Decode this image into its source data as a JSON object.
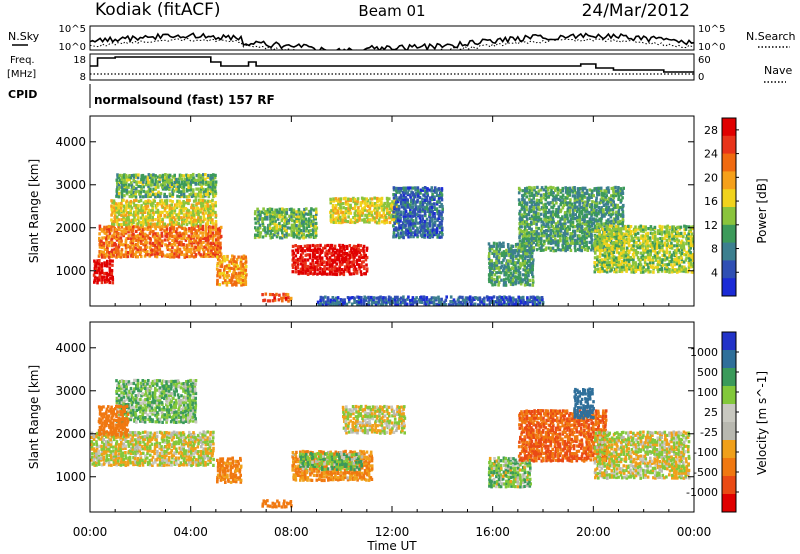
{
  "header": {
    "station": "Kodiak (fitACF)",
    "beam": "Beam 01",
    "date": "24/Mar/2012"
  },
  "strip": {
    "left_top": "N.Sky",
    "left_freq_1": "Freq.",
    "left_freq_2": "[MHz]",
    "left_cpid": "CPID",
    "right_top": "N.Search",
    "right_mid": "Nave",
    "noise_tick_hi": "10^5",
    "noise_tick_lo": "10^0",
    "freq_tick_hi": "18",
    "freq_tick_lo": "8",
    "nave_tick_hi": "60",
    "nave_tick_lo": "0",
    "cpid_text": "normalsound (fast) 157 RF"
  },
  "colors": {
    "power_scale": [
      "#1b2bd6",
      "#2f4fb4",
      "#3c7f8f",
      "#3c9a5a",
      "#8ac43c",
      "#f1d31c",
      "#f5a01a",
      "#f06a10",
      "#e8341a",
      "#e00000"
    ],
    "velocity_scale": [
      "#2233c8",
      "#2f6f9a",
      "#3a9a5a",
      "#82c83a",
      "#c8c8c0",
      "#b8b8b0",
      "#f0a01a",
      "#f07810",
      "#ea4a14",
      "#e00000"
    ],
    "ground_scatter": "#c6c6be"
  },
  "chart_data": [
    {
      "type": "heatmap",
      "title": "Power",
      "xlabel": "Time UT",
      "ylabel": "Slant Range [km]",
      "x_ticks": [
        "00:00",
        "04:00",
        "08:00",
        "12:00",
        "16:00",
        "20:00",
        "00:00"
      ],
      "y_ticks": [
        "1000",
        "2000",
        "3000",
        "4000"
      ],
      "ylim": [
        180,
        4600
      ],
      "colorbar": {
        "label": "Power [dB]",
        "ticks": [
          "4",
          "8",
          "12",
          "16",
          "20",
          "24",
          "28"
        ],
        "range": [
          0,
          30
        ]
      },
      "regions": [
        {
          "t": [
            0.1,
            0.9
          ],
          "r": [
            750,
            1300
          ],
          "v": 29
        },
        {
          "t": [
            0.3,
            5.2
          ],
          "r": [
            1350,
            2100
          ],
          "v": 22
        },
        {
          "t": [
            0.8,
            5.0
          ],
          "r": [
            2100,
            2700
          ],
          "v": 16
        },
        {
          "t": [
            1.0,
            5.0
          ],
          "r": [
            2750,
            3300
          ],
          "v": 12
        },
        {
          "t": [
            5.0,
            6.2
          ],
          "r": [
            700,
            1400
          ],
          "v": 20
        },
        {
          "t": [
            6.8,
            8.0
          ],
          "r": [
            330,
            520
          ],
          "v": 24
        },
        {
          "t": [
            8.0,
            11.0
          ],
          "r": [
            950,
            1650
          ],
          "v": 28
        },
        {
          "t": [
            9.5,
            12.2
          ],
          "r": [
            2150,
            2750
          ],
          "v": 16
        },
        {
          "t": [
            6.5,
            9.0
          ],
          "r": [
            1800,
            2500
          ],
          "v": 12
        },
        {
          "t": [
            12.0,
            14.0
          ],
          "r": [
            1800,
            3000
          ],
          "v": 6
        },
        {
          "t": [
            15.8,
            17.6
          ],
          "r": [
            700,
            1700
          ],
          "v": 10
        },
        {
          "t": [
            17.0,
            21.2
          ],
          "r": [
            1500,
            3000
          ],
          "v": 10
        },
        {
          "t": [
            20.0,
            24.0
          ],
          "r": [
            1000,
            2100
          ],
          "v": 14
        },
        {
          "t": [
            9.0,
            18.0
          ],
          "r": [
            240,
            450
          ],
          "v": 5
        }
      ]
    },
    {
      "type": "heatmap",
      "title": "Velocity",
      "xlabel": "Time UT",
      "ylabel": "Slant Range [km]",
      "x_ticks": [
        "00:00",
        "04:00",
        "08:00",
        "12:00",
        "16:00",
        "20:00",
        "00:00"
      ],
      "y_ticks": [
        "1000",
        "2000",
        "3000",
        "4000"
      ],
      "ylim": [
        180,
        4600
      ],
      "colorbar": {
        "label": "Velocity [m s^-1]",
        "ticks": [
          "1000",
          "500",
          "100",
          "25",
          "-25",
          "-100",
          "-500",
          "-1000"
        ],
        "range": [
          -1000,
          1000
        ]
      },
      "regions": [
        {
          "t": [
            0.0,
            4.9
          ],
          "r": [
            1300,
            2100
          ],
          "v": 0
        },
        {
          "t": [
            1.0,
            4.2
          ],
          "r": [
            2300,
            3300
          ],
          "v": 80
        },
        {
          "t": [
            0.3,
            1.5
          ],
          "r": [
            2000,
            2700
          ],
          "v": -200
        },
        {
          "t": [
            5.0,
            6.0
          ],
          "r": [
            900,
            1500
          ],
          "v": -150
        },
        {
          "t": [
            6.8,
            8.0
          ],
          "r": [
            330,
            520
          ],
          "v": -300
        },
        {
          "t": [
            8.0,
            11.2
          ],
          "r": [
            950,
            1650
          ],
          "v": -120
        },
        {
          "t": [
            8.3,
            10.8
          ],
          "r": [
            1200,
            1600
          ],
          "v": 90
        },
        {
          "t": [
            10.0,
            12.5
          ],
          "r": [
            2050,
            2700
          ],
          "v": 0
        },
        {
          "t": [
            15.8,
            17.5
          ],
          "r": [
            800,
            1500
          ],
          "v": 60
        },
        {
          "t": [
            17.0,
            20.5
          ],
          "r": [
            1400,
            2600
          ],
          "v": -500
        },
        {
          "t": [
            20.0,
            23.8
          ],
          "r": [
            1000,
            2100
          ],
          "v": 0
        },
        {
          "t": [
            19.2,
            20.0
          ],
          "r": [
            2400,
            3100
          ],
          "v": 600
        }
      ]
    }
  ]
}
